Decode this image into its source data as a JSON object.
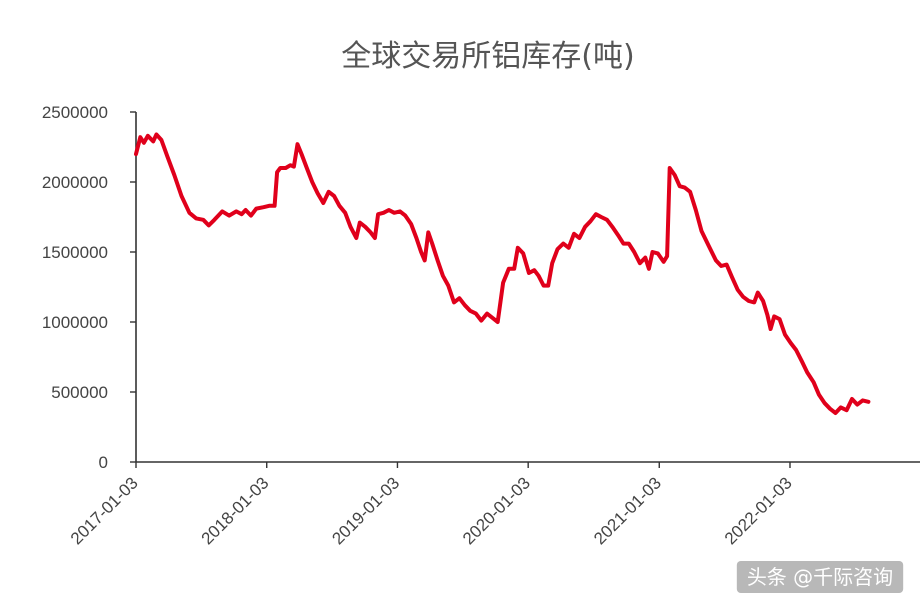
{
  "chart_data": {
    "type": "line",
    "title": "全球交易所铝库存(吨)",
    "xlabel": "",
    "ylabel": "",
    "ylim": [
      0,
      2500000
    ],
    "yticks": [
      0,
      500000,
      1000000,
      1500000,
      2000000,
      2500000
    ],
    "ytick_labels": [
      "0",
      "500000",
      "1000000",
      "1500000",
      "2000000",
      "2500000"
    ],
    "xlim": [
      "2017-01-03",
      "2023-01-01"
    ],
    "xtick_labels": [
      "2017-01-03",
      "2018-01-03",
      "2019-01-03",
      "2020-01-03",
      "2021-01-03",
      "2022-01-03"
    ],
    "grid": false,
    "legend": "none",
    "series": [
      {
        "color": "#e0001b",
        "points": [
          [
            "2017-01-03",
            2200000
          ],
          [
            "2017-01-15",
            2320000
          ],
          [
            "2017-01-25",
            2280000
          ],
          [
            "2017-02-05",
            2330000
          ],
          [
            "2017-02-20",
            2290000
          ],
          [
            "2017-03-01",
            2340000
          ],
          [
            "2017-03-15",
            2300000
          ],
          [
            "2017-04-01",
            2180000
          ],
          [
            "2017-04-20",
            2050000
          ],
          [
            "2017-05-10",
            1900000
          ],
          [
            "2017-06-01",
            1780000
          ],
          [
            "2017-06-20",
            1740000
          ],
          [
            "2017-07-10",
            1730000
          ],
          [
            "2017-07-25",
            1690000
          ],
          [
            "2017-08-10",
            1730000
          ],
          [
            "2017-09-01",
            1790000
          ],
          [
            "2017-09-20",
            1760000
          ],
          [
            "2017-10-10",
            1790000
          ],
          [
            "2017-10-25",
            1770000
          ],
          [
            "2017-11-05",
            1800000
          ],
          [
            "2017-11-20",
            1760000
          ],
          [
            "2017-12-05",
            1810000
          ],
          [
            "2017-12-25",
            1820000
          ],
          [
            "2018-01-10",
            1830000
          ],
          [
            "2018-01-25",
            1830000
          ],
          [
            "2018-02-01",
            2070000
          ],
          [
            "2018-02-10",
            2100000
          ],
          [
            "2018-02-25",
            2100000
          ],
          [
            "2018-03-10",
            2120000
          ],
          [
            "2018-03-20",
            2110000
          ],
          [
            "2018-03-30",
            2270000
          ],
          [
            "2018-04-10",
            2200000
          ],
          [
            "2018-04-25",
            2100000
          ],
          [
            "2018-05-10",
            2000000
          ],
          [
            "2018-05-25",
            1920000
          ],
          [
            "2018-06-10",
            1850000
          ],
          [
            "2018-06-25",
            1930000
          ],
          [
            "2018-07-10",
            1900000
          ],
          [
            "2018-07-25",
            1830000
          ],
          [
            "2018-08-10",
            1780000
          ],
          [
            "2018-08-25",
            1680000
          ],
          [
            "2018-09-10",
            1600000
          ],
          [
            "2018-09-20",
            1710000
          ],
          [
            "2018-10-05",
            1680000
          ],
          [
            "2018-10-20",
            1640000
          ],
          [
            "2018-11-01",
            1600000
          ],
          [
            "2018-11-10",
            1770000
          ],
          [
            "2018-11-25",
            1780000
          ],
          [
            "2018-12-10",
            1800000
          ],
          [
            "2018-12-25",
            1780000
          ],
          [
            "2019-01-10",
            1790000
          ],
          [
            "2019-01-25",
            1760000
          ],
          [
            "2019-02-10",
            1700000
          ],
          [
            "2019-02-25",
            1600000
          ],
          [
            "2019-03-10",
            1500000
          ],
          [
            "2019-03-20",
            1440000
          ],
          [
            "2019-03-30",
            1640000
          ],
          [
            "2019-04-10",
            1560000
          ],
          [
            "2019-04-25",
            1440000
          ],
          [
            "2019-05-10",
            1330000
          ],
          [
            "2019-05-25",
            1260000
          ],
          [
            "2019-06-10",
            1140000
          ],
          [
            "2019-06-25",
            1170000
          ],
          [
            "2019-07-10",
            1120000
          ],
          [
            "2019-07-25",
            1080000
          ],
          [
            "2019-08-10",
            1060000
          ],
          [
            "2019-08-25",
            1010000
          ],
          [
            "2019-09-10",
            1060000
          ],
          [
            "2019-09-25",
            1030000
          ],
          [
            "2019-10-10",
            1000000
          ],
          [
            "2019-10-25",
            1280000
          ],
          [
            "2019-11-10",
            1380000
          ],
          [
            "2019-11-25",
            1380000
          ],
          [
            "2019-12-05",
            1530000
          ],
          [
            "2019-12-20",
            1490000
          ],
          [
            "2020-01-05",
            1350000
          ],
          [
            "2020-01-20",
            1370000
          ],
          [
            "2020-02-01",
            1330000
          ],
          [
            "2020-02-15",
            1260000
          ],
          [
            "2020-02-28",
            1260000
          ],
          [
            "2020-03-10",
            1420000
          ],
          [
            "2020-03-25",
            1520000
          ],
          [
            "2020-04-10",
            1560000
          ],
          [
            "2020-04-25",
            1530000
          ],
          [
            "2020-05-10",
            1630000
          ],
          [
            "2020-05-25",
            1600000
          ],
          [
            "2020-06-10",
            1680000
          ],
          [
            "2020-06-25",
            1720000
          ],
          [
            "2020-07-10",
            1770000
          ],
          [
            "2020-07-25",
            1750000
          ],
          [
            "2020-08-10",
            1730000
          ],
          [
            "2020-08-25",
            1680000
          ],
          [
            "2020-09-10",
            1620000
          ],
          [
            "2020-09-25",
            1560000
          ],
          [
            "2020-10-10",
            1560000
          ],
          [
            "2020-10-25",
            1500000
          ],
          [
            "2020-11-10",
            1420000
          ],
          [
            "2020-11-25",
            1460000
          ],
          [
            "2020-12-05",
            1380000
          ],
          [
            "2020-12-15",
            1500000
          ],
          [
            "2020-12-30",
            1490000
          ],
          [
            "2021-01-15",
            1430000
          ],
          [
            "2021-01-25",
            1470000
          ],
          [
            "2021-02-01",
            2100000
          ],
          [
            "2021-02-15",
            2050000
          ],
          [
            "2021-03-01",
            1970000
          ],
          [
            "2021-03-15",
            1960000
          ],
          [
            "2021-03-30",
            1930000
          ],
          [
            "2021-04-15",
            1800000
          ],
          [
            "2021-05-01",
            1650000
          ],
          [
            "2021-05-20",
            1550000
          ],
          [
            "2021-06-10",
            1440000
          ],
          [
            "2021-06-25",
            1400000
          ],
          [
            "2021-07-10",
            1410000
          ],
          [
            "2021-07-25",
            1320000
          ],
          [
            "2021-08-10",
            1230000
          ],
          [
            "2021-08-25",
            1180000
          ],
          [
            "2021-09-10",
            1150000
          ],
          [
            "2021-09-25",
            1140000
          ],
          [
            "2021-10-05",
            1210000
          ],
          [
            "2021-10-20",
            1150000
          ],
          [
            "2021-11-01",
            1050000
          ],
          [
            "2021-11-10",
            950000
          ],
          [
            "2021-11-20",
            1040000
          ],
          [
            "2021-12-05",
            1020000
          ],
          [
            "2021-12-20",
            910000
          ],
          [
            "2022-01-05",
            850000
          ],
          [
            "2022-01-20",
            800000
          ],
          [
            "2022-02-05",
            720000
          ],
          [
            "2022-02-20",
            640000
          ],
          [
            "2022-03-10",
            570000
          ],
          [
            "2022-03-25",
            480000
          ],
          [
            "2022-04-10",
            420000
          ],
          [
            "2022-04-25",
            380000
          ],
          [
            "2022-05-10",
            350000
          ],
          [
            "2022-05-25",
            390000
          ],
          [
            "2022-06-10",
            370000
          ],
          [
            "2022-06-25",
            450000
          ],
          [
            "2022-07-10",
            410000
          ],
          [
            "2022-07-25",
            440000
          ],
          [
            "2022-08-10",
            430000
          ]
        ]
      }
    ]
  },
  "watermark": "头条 @千际咨询"
}
